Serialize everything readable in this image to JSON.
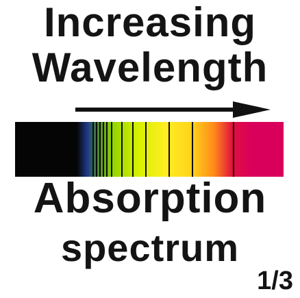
{
  "title": {
    "line1": "Increasing",
    "line2": "Wavelength"
  },
  "label": {
    "line1": "Absorption",
    "line2": "spectrum"
  },
  "page_indicator": "1/3",
  "colors": {
    "text": "#141414",
    "arrow": "#111111",
    "band_black": "#050505",
    "band_blue": "#1e3a8a",
    "band_green": "#8fd400",
    "band_yellow": "#ffee22",
    "band_orange": "#ff8c1a",
    "band_red": "#e0103e",
    "band_magenta": "#d9005c",
    "absorption_line": "#0a0a0a"
  }
}
